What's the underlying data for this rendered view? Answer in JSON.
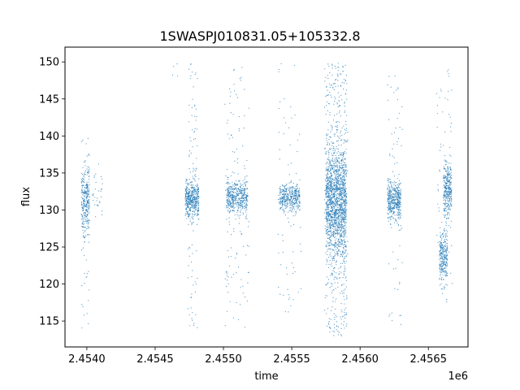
{
  "chart_data": {
    "type": "scatter",
    "title": "1SWASPJ010831.05+105332.8",
    "xlabel": "time",
    "ylabel": "flux",
    "x_offset_label": "1e6",
    "xlim": [
      2.45384,
      2.45679
    ],
    "ylim": [
      111.5,
      152.0
    ],
    "x_ticks": [
      2.454,
      2.4545,
      2.455,
      2.4555,
      2.456,
      2.4565
    ],
    "x_tick_labels": [
      "2.4540",
      "2.4545",
      "2.4550",
      "2.4555",
      "2.4560",
      "2.4565"
    ],
    "y_ticks": [
      115,
      120,
      125,
      130,
      135,
      140,
      145,
      150
    ],
    "y_tick_labels": [
      "115",
      "120",
      "125",
      "130",
      "135",
      "140",
      "145",
      "150"
    ],
    "grid": false,
    "marker_color": "#1f77b4",
    "clusters": [
      {
        "x_range": [
          2.45396,
          2.45402
        ],
        "center": 131.5,
        "spread": 2.5,
        "count": 300
      },
      {
        "x_range": [
          2.45404,
          2.45412
        ],
        "center": 132.0,
        "spread": 1.5,
        "count": 30
      },
      {
        "x_range": [
          2.45472,
          2.45482
        ],
        "center": 131.5,
        "spread": 1.3,
        "count": 450
      },
      {
        "x_range": [
          2.45502,
          2.45518
        ],
        "center": 131.7,
        "spread": 1.1,
        "count": 450
      },
      {
        "x_range": [
          2.45541,
          2.45556
        ],
        "center": 131.7,
        "spread": 0.9,
        "count": 380
      },
      {
        "x_range": [
          2.45575,
          2.4559
        ],
        "center": 131.0,
        "spread": 3.8,
        "count": 1500
      },
      {
        "x_range": [
          2.4562,
          2.4563
        ],
        "center": 131.2,
        "spread": 1.3,
        "count": 420
      },
      {
        "x_range": [
          2.45658,
          2.45664
        ],
        "center": 123.5,
        "spread": 1.8,
        "count": 260
      },
      {
        "x_range": [
          2.45661,
          2.45667
        ],
        "center": 132.5,
        "spread": 2.0,
        "count": 320
      }
    ],
    "outlier_bands": [
      {
        "x_range": [
          2.45396,
          2.45402
        ],
        "y_range": [
          113,
          142
        ],
        "count": 30
      },
      {
        "x_range": [
          2.45462,
          2.45468
        ],
        "y_range": [
          147,
          150
        ],
        "count": 4
      },
      {
        "x_range": [
          2.45474,
          2.45481
        ],
        "y_range": [
          113,
          150
        ],
        "count": 90
      },
      {
        "x_range": [
          2.45501,
          2.45519
        ],
        "y_range": [
          114,
          150
        ],
        "count": 110
      },
      {
        "x_range": [
          2.4554,
          2.45557
        ],
        "y_range": [
          116,
          150
        ],
        "count": 70
      },
      {
        "x_range": [
          2.45574,
          2.45591
        ],
        "y_range": [
          113,
          150
        ],
        "count": 450
      },
      {
        "x_range": [
          2.4562,
          2.45631
        ],
        "y_range": [
          113,
          150
        ],
        "count": 70
      },
      {
        "x_range": [
          2.45656,
          2.45668
        ],
        "y_range": [
          114,
          149
        ],
        "count": 60
      }
    ]
  }
}
